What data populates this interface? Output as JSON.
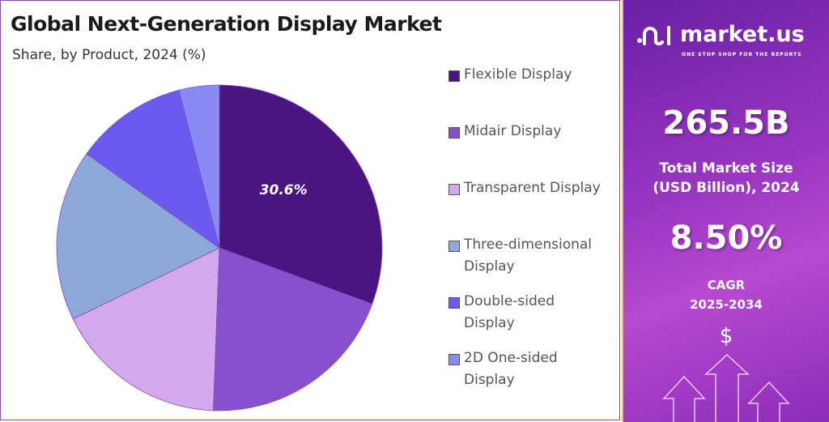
{
  "header": {
    "title": "Global Next-Generation Display Market",
    "subtitle": "Share, by Product, 2024 (%)"
  },
  "chart_data": {
    "type": "pie",
    "title": "Global Next-Generation Display Market",
    "subtitle": "Share, by Product, 2024 (%)",
    "categories": [
      "Flexible Display",
      "Midair Display",
      "Transparent Display",
      "Three-dimensional Display",
      "Double-sided Display",
      "2D One-sided Display"
    ],
    "values": [
      30.6,
      20.0,
      17.2,
      17.0,
      11.2,
      4.0
    ],
    "colors": [
      "#4a1580",
      "#8a4fcc",
      "#d4a8ec",
      "#8fa8dc",
      "#6a5af0",
      "#8a8af5"
    ],
    "data_labels": [
      "30.6%",
      "",
      "",
      "",
      "",
      ""
    ],
    "legend": "right"
  },
  "legend": [
    {
      "line1": "Flexible Display",
      "line2": ""
    },
    {
      "line1": "Midair Display",
      "line2": ""
    },
    {
      "line1": "Transparent Display",
      "line2": ""
    },
    {
      "line1": "Three-dimensional",
      "line2": "Display"
    },
    {
      "line1": "Double-sided",
      "line2": "Display"
    },
    {
      "line1": "2D One-sided",
      "line2": "Display"
    }
  ],
  "side": {
    "brand": "market.us",
    "tagline": "ONE STOP SHOP FOR THE REPORTS",
    "market_size": "265.5B",
    "market_size_label1": "Total Market Size",
    "market_size_label2": "(USD Billion), 2024",
    "cagr": "8.50%",
    "cagr_label1": "CAGR",
    "cagr_label2": "2025-2034",
    "currency_symbol": "$"
  }
}
